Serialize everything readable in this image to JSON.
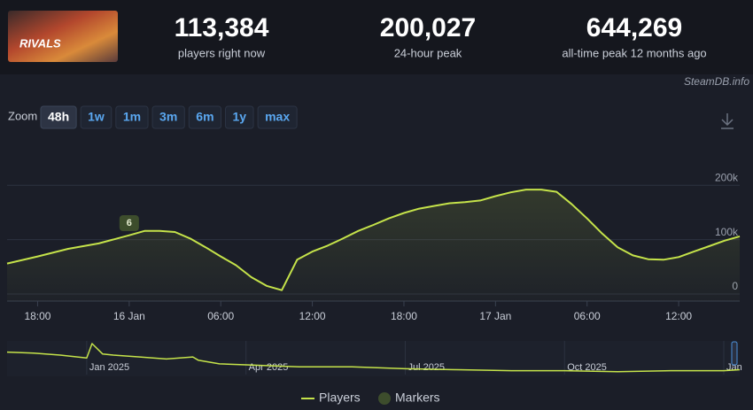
{
  "header": {
    "stats": [
      {
        "value": "113,384",
        "label": "players right now"
      },
      {
        "value": "200,027",
        "label": "24-hour peak"
      },
      {
        "value": "644,269",
        "label": "all-time peak 12 months ago"
      }
    ],
    "source": "SteamDB.info"
  },
  "zoom": {
    "label": "Zoom",
    "options": [
      "48h",
      "1w",
      "1m",
      "3m",
      "6m",
      "1y",
      "max"
    ],
    "active": 0
  },
  "chart_data": [
    {
      "type": "line",
      "x": [
        -8,
        -6,
        -4,
        -2,
        0,
        1,
        2,
        3,
        4,
        5,
        6,
        7,
        8,
        9,
        10,
        11,
        12,
        13,
        14,
        15,
        16,
        17,
        18,
        19,
        20,
        21,
        22,
        23,
        24,
        25,
        26,
        27,
        28,
        29,
        30,
        31,
        32,
        33,
        34,
        35,
        36,
        37,
        38,
        39,
        40
      ],
      "series": [
        {
          "name": "Players",
          "color": "#c5e34a",
          "values": [
            56000,
            69000,
            83000,
            93000,
            108000,
            116000,
            116000,
            114000,
            102000,
            86000,
            69000,
            53000,
            31000,
            15000,
            7000,
            63000,
            78000,
            89000,
            102000,
            116000,
            127000,
            139000,
            149000,
            157000,
            162000,
            167000,
            169000,
            172000,
            180000,
            187000,
            192000,
            192000,
            188000,
            165000,
            139000,
            111000,
            86000,
            71000,
            64000,
            63000,
            68000,
            78000,
            88000,
            98000,
            106000
          ]
        }
      ],
      "markers": {
        "name": "Markers",
        "color": "#3d4d2c",
        "points": [
          {
            "x": 0,
            "text": "6"
          }
        ]
      },
      "xlim": [
        -8,
        40
      ],
      "xticks": [
        {
          "value": -6,
          "label": "18:00"
        },
        {
          "value": 0,
          "label": "16 Jan"
        },
        {
          "value": 6,
          "label": "06:00"
        },
        {
          "value": 12,
          "label": "12:00"
        },
        {
          "value": 18,
          "label": "18:00"
        },
        {
          "value": 24,
          "label": "17 Jan"
        },
        {
          "value": 30,
          "label": "06:00"
        },
        {
          "value": 36,
          "label": "12:00"
        }
      ],
      "ylim": [
        -13000,
        285000
      ],
      "yticks": [
        0,
        {
          "value": 100000,
          "label": "100k"
        },
        {
          "value": 200000,
          "label": "200k"
        }
      ],
      "grid": true
    },
    {
      "type": "line",
      "x": [
        -1.5,
        -1,
        -0.5,
        0,
        0.1,
        0.3,
        0.5,
        1,
        1.5,
        2,
        2.1,
        2.5,
        3,
        3.5,
        4,
        5,
        6,
        7,
        8,
        9,
        10,
        11,
        12,
        12.3
      ],
      "series": [
        {
          "name": "Players",
          "color": "#c5e34a",
          "values": [
            467000,
            447000,
            406000,
            345000,
            644000,
            427000,
            406000,
            366000,
            325000,
            366000,
            300000,
            223000,
            203000,
            183000,
            162000,
            162000,
            122000,
            102000,
            81000,
            81000,
            61000,
            81000,
            81000,
            102000
          ]
        }
      ],
      "xlim": [
        -1.5,
        12.3
      ],
      "xticks": [
        {
          "value": 0,
          "label": "Jan 2025"
        },
        {
          "value": 3,
          "label": "Apr 2025"
        },
        {
          "value": 6,
          "label": "Jul 2025"
        },
        {
          "value": 9,
          "label": "Oct 2025"
        },
        {
          "value": 12,
          "label": "Jan"
        }
      ],
      "ylim": [
        0,
        700000
      ]
    }
  ]
}
